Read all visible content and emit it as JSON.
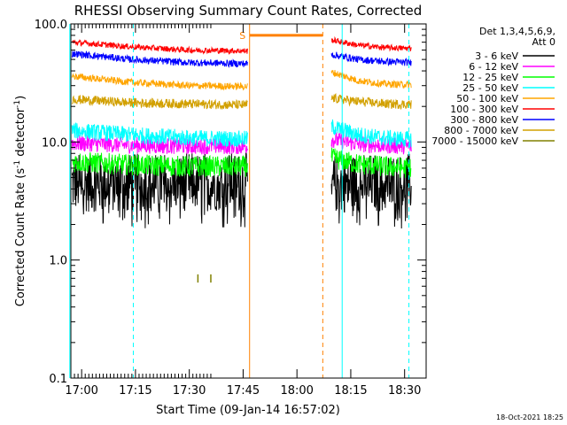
{
  "chart_data": {
    "type": "line",
    "title": "RHESSI Observing Summary Count Rates, Corrected",
    "xlabel": "Start Time (09-Jan-14 16:57:02)",
    "ylabel_main": "Corrected Count Rate (s",
    "ylabel_sup1": "-1",
    "ylabel_mid": " detector",
    "ylabel_sup2": "-1",
    "ylabel_end": ")",
    "ylabel_full": "Corrected Count Rate (s-1 detector-1)",
    "yscale": "log",
    "ylim": [
      0.1,
      100.0
    ],
    "xlim_minutes": [
      16.95,
      18.6
    ],
    "x_ticks": [
      {
        "t": 17.0,
        "label": "17:00"
      },
      {
        "t": 17.25,
        "label": "17:15"
      },
      {
        "t": 17.5,
        "label": "17:30"
      },
      {
        "t": 17.75,
        "label": "17:45"
      },
      {
        "t": 18.0,
        "label": "18:00"
      },
      {
        "t": 18.25,
        "label": "18:15"
      },
      {
        "t": 18.5,
        "label": "18:30"
      }
    ],
    "y_ticks": [
      {
        "v": 0.1,
        "label": "0.1"
      },
      {
        "v": 1.0,
        "label": "1.0"
      },
      {
        "v": 10.0,
        "label": "10.0"
      },
      {
        "v": 100.0,
        "label": "100.0"
      }
    ],
    "legend_header": [
      "Det 1,3,4,5,6,9,",
      "Att 0"
    ],
    "legend_position": "right",
    "series": [
      {
        "name": "3 - 6 keV",
        "color": "#000000",
        "seg1": [
          4.5,
          4.5,
          4.6,
          4.6
        ],
        "seg2": [
          4.4,
          4.5,
          4.5,
          4.5
        ],
        "noise": 0.25,
        "dropouts": true
      },
      {
        "name": "6 - 12 keV",
        "color": "#ff00ff",
        "seg1": [
          9.8,
          9.4,
          9.2,
          9.2
        ],
        "seg2": [
          10.5,
          9.6,
          9.3,
          9.2
        ],
        "noise": 0.07
      },
      {
        "name": "12 - 25 keV",
        "color": "#00ff00",
        "seg1": [
          6.8,
          6.4,
          6.2,
          6.2
        ],
        "seg2": [
          7.3,
          6.5,
          6.2,
          6.0
        ],
        "noise": 0.09
      },
      {
        "name": "25 - 50 keV",
        "color": "#00ffff",
        "seg1": [
          12.5,
          11.5,
          10.8,
          10.6
        ],
        "seg2": [
          13.5,
          11.5,
          10.8,
          10.5
        ],
        "noise": 0.07
      },
      {
        "name": "50 - 100 keV",
        "color": "#ffa500",
        "seg1": [
          36.0,
          32.0,
          30.0,
          29.5
        ],
        "seg2": [
          39.0,
          33.0,
          31.0,
          30.5
        ],
        "noise": 0.03
      },
      {
        "name": "100 - 300 keV",
        "color": "#ff0000",
        "seg1": [
          70.0,
          64.0,
          60.0,
          59.0
        ],
        "seg2": [
          73.0,
          66.0,
          63.0,
          62.0
        ],
        "noise": 0.025
      },
      {
        "name": "300 - 800 keV",
        "color": "#0000ff",
        "seg1": [
          56.0,
          50.0,
          47.0,
          46.0
        ],
        "seg2": [
          55.0,
          50.0,
          48.0,
          47.0
        ],
        "noise": 0.03
      },
      {
        "name": "800 - 7000 keV",
        "color": "#d2a000",
        "seg1": [
          23.0,
          21.5,
          21.0,
          20.5
        ],
        "seg2": [
          23.5,
          22.0,
          21.0,
          20.8
        ],
        "noise": 0.04
      },
      {
        "name": "7000 - 15000 keV",
        "color": "#808000",
        "seg1": [
          0.7,
          0.7,
          0.7,
          0.7
        ],
        "seg2": [],
        "noise": 0.0
      }
    ],
    "gaps": [
      {
        "name": "data-gap",
        "start": 17.77,
        "end": 18.16
      }
    ],
    "vertical_markers": [
      {
        "name": "cyan-marker-1",
        "t": 16.945,
        "color": "#00ffff",
        "style": "solid"
      },
      {
        "name": "cyan-marker-2",
        "t": 17.24,
        "color": "#00ffff",
        "style": "dashed"
      },
      {
        "name": "cyan-marker-3",
        "t": 18.21,
        "color": "#00ffff",
        "style": "solid"
      },
      {
        "name": "cyan-marker-4",
        "t": 18.52,
        "color": "#00ffff",
        "style": "dashed"
      },
      {
        "name": "orange-marker-1",
        "t": 17.78,
        "color": "#ff8000",
        "style": "solid"
      },
      {
        "name": "orange-marker-2",
        "t": 18.12,
        "color": "#ff8000",
        "style": "dashed"
      }
    ],
    "saa_bar": {
      "label": "S",
      "start": 17.78,
      "end": 18.12,
      "value": 80.0,
      "color": "#ff8000"
    },
    "timestamp": "18-Oct-2021 18:25"
  }
}
